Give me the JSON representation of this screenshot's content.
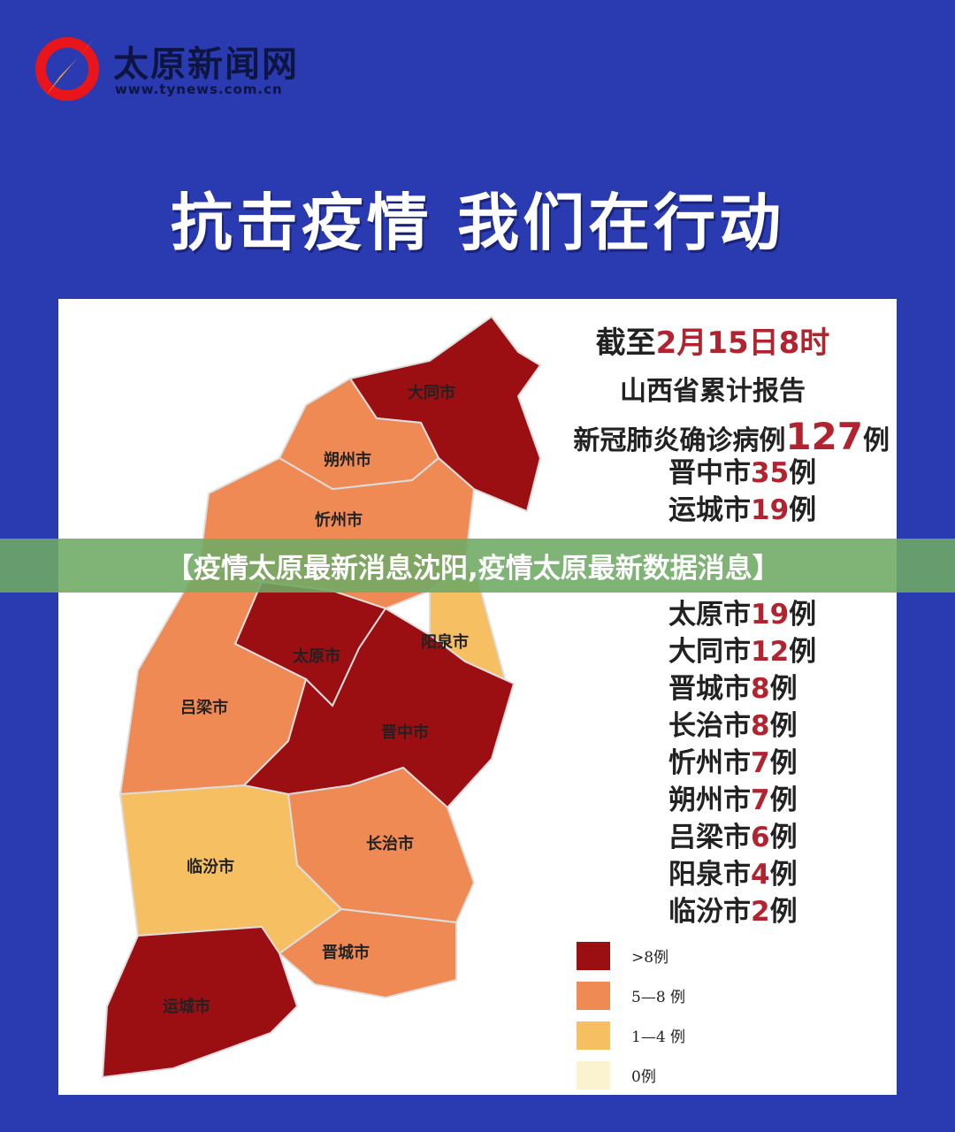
{
  "header": {
    "brand": "太原新闻网",
    "url": "www.tynews.com.cn",
    "logo_icon": "quill-in-red-circle-icon"
  },
  "headline": "抗击疫情 我们在行动",
  "info": {
    "prefix": "截至",
    "date": "2月15日8时",
    "line2": "山西省累计报告",
    "line3_prefix": "新冠肺炎确诊病例",
    "total": "127",
    "unit": "例"
  },
  "cases": [
    {
      "city": "晋中市",
      "count": "35",
      "unit": "例"
    },
    {
      "city": "运城市",
      "count": "19",
      "unit": "例"
    },
    {
      "city": "太原市",
      "count": "19",
      "unit": "例"
    },
    {
      "city": "大同市",
      "count": "12",
      "unit": "例"
    },
    {
      "city": "晋城市",
      "count": "8",
      "unit": "例"
    },
    {
      "city": "长治市",
      "count": "8",
      "unit": "例"
    },
    {
      "city": "忻州市",
      "count": "7",
      "unit": "例"
    },
    {
      "city": "朔州市",
      "count": "7",
      "unit": "例"
    },
    {
      "city": "吕梁市",
      "count": "6",
      "unit": "例"
    },
    {
      "city": "阳泉市",
      "count": "4",
      "unit": "例"
    },
    {
      "city": "临汾市",
      "count": "2",
      "unit": "例"
    }
  ],
  "map": {
    "regions": [
      {
        "name": "大同市",
        "class": ">8"
      },
      {
        "name": "朔州市",
        "class": "5-8"
      },
      {
        "name": "忻州市",
        "class": "5-8"
      },
      {
        "name": "太原市",
        "class": ">8"
      },
      {
        "name": "阳泉市",
        "class": "1-4"
      },
      {
        "name": "吕梁市",
        "class": "5-8"
      },
      {
        "name": "晋中市",
        "class": ">8"
      },
      {
        "name": "长治市",
        "class": "5-8"
      },
      {
        "name": "临汾市",
        "class": "1-4"
      },
      {
        "name": "晋城市",
        "class": "5-8"
      },
      {
        "name": "运城市",
        "class": ">8"
      }
    ]
  },
  "legend": [
    {
      "label": ">8例",
      "color": "#9b0f12"
    },
    {
      "label": "5—8 例",
      "color": "#f08a55"
    },
    {
      "label": "1—4 例",
      "color": "#f5bf62"
    },
    {
      "label": "0例",
      "color": "#fbf3cf"
    }
  ],
  "banner": "【疫情太原最新消息沈阳,疫情太原最新数据消息】"
}
